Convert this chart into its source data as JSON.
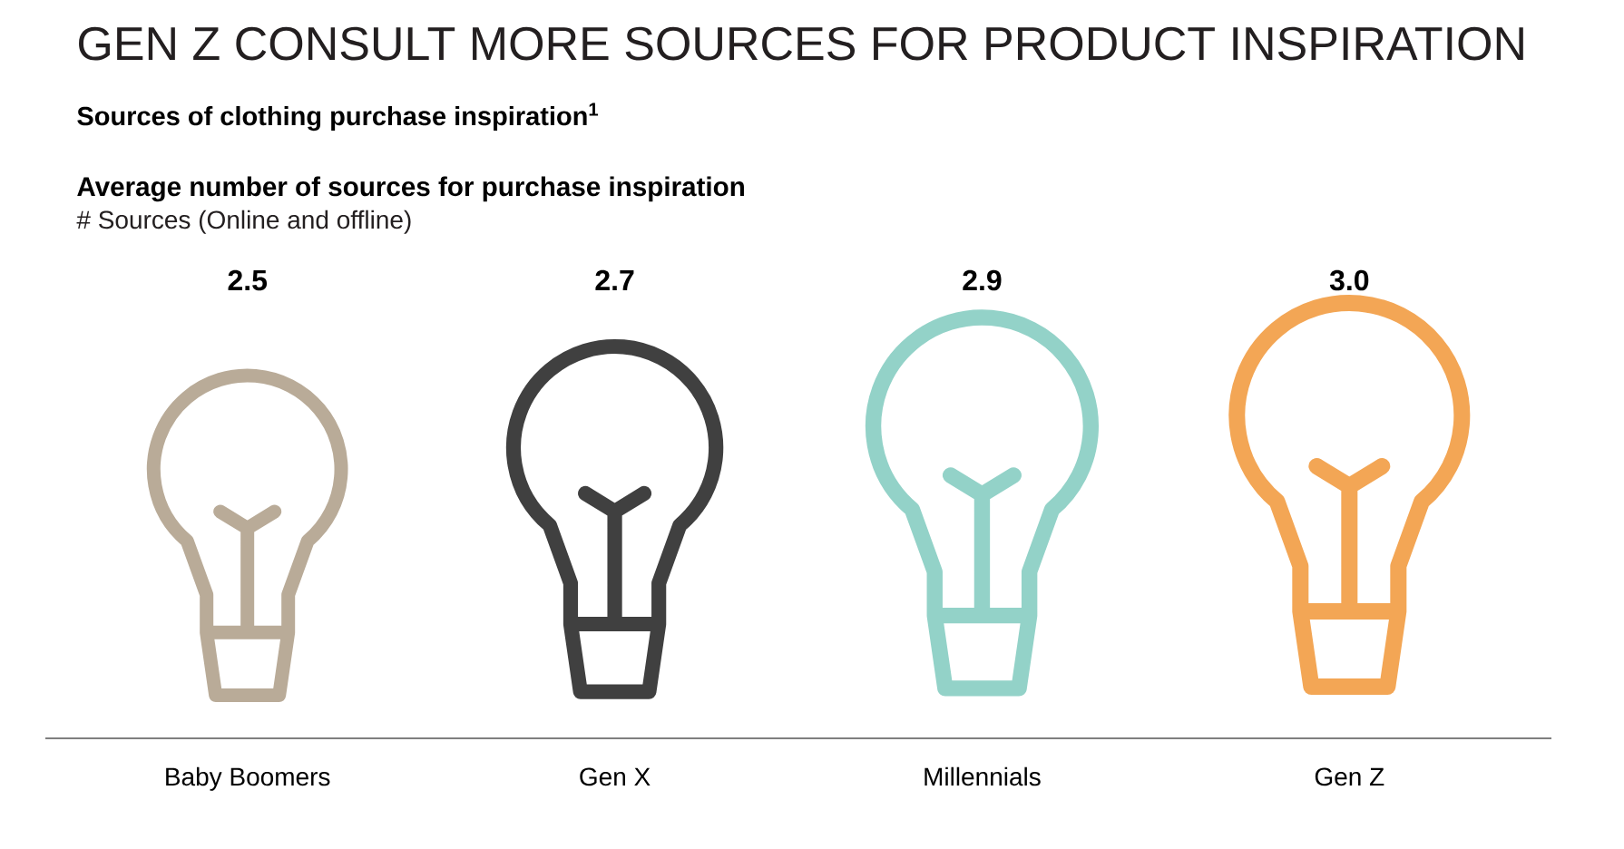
{
  "chart_data": {
    "type": "other",
    "title": "GEN Z CONSULT MORE SOURCES FOR PRODUCT INSPIRATION",
    "subtitle": "Sources of clothing purchase inspiration$^{1}$",
    "annotations": [
      "Average number of sources for purchase inspiration"
    ],
    "ylabel": "# Sources (Online and offline)",
    "categories": [
      "Baby Boomers",
      "Gen X",
      "Millennials",
      "Gen Z"
    ],
    "values": [
      2.5,
      2.7,
      2.9,
      3.0
    ],
    "value_labels": [
      "2.5",
      "2.7",
      "2.9",
      "3.0"
    ],
    "colors": [
      "#b9ab98",
      "#404040",
      "#93d2c8",
      "#f3a655"
    ]
  }
}
